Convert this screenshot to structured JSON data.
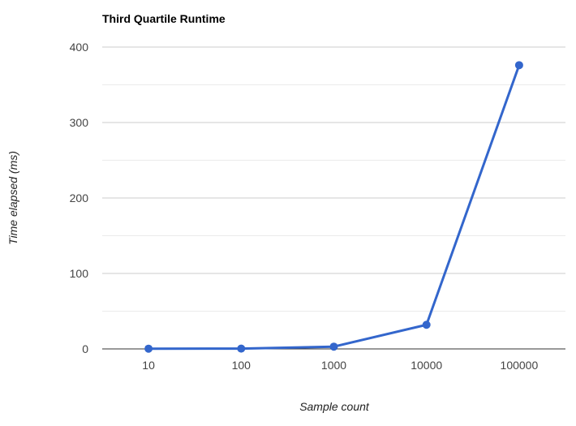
{
  "chart_data": {
    "type": "line",
    "title": "Third Quartile Runtime",
    "xlabel": "Sample count",
    "ylabel": "Time elapsed (ms)",
    "categories": [
      "10",
      "100",
      "1000",
      "10000",
      "100000"
    ],
    "series": [
      {
        "values": [
          0.3,
          0.4,
          3,
          32,
          376
        ]
      }
    ],
    "ylim": [
      0,
      400
    ],
    "yticks": [
      "0",
      "100",
      "200",
      "300",
      "400"
    ],
    "grid": true,
    "legend": "none",
    "colors": {
      "series": "#3366cc",
      "gridline": "#cccccc",
      "minor_gridline": "#ebebeb",
      "baseline": "#333333"
    }
  }
}
